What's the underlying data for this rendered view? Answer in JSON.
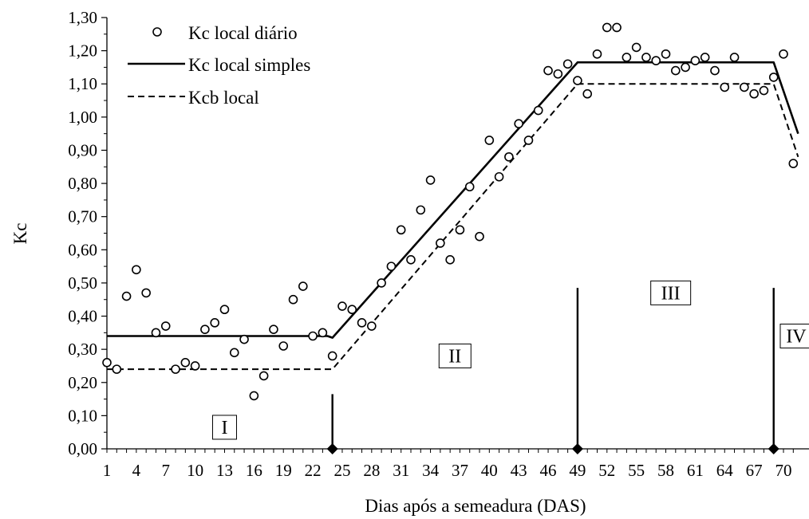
{
  "chart_data": {
    "type": "line",
    "title": "",
    "xlabel": "Dias após a semeadura (DAS)",
    "ylabel": "Kc",
    "xlim": [
      1,
      71
    ],
    "ylim": [
      0,
      1.3
    ],
    "x_ticks": [
      "1",
      "4",
      "7",
      "10",
      "13",
      "16",
      "19",
      "22",
      "25",
      "28",
      "31",
      "34",
      "37",
      "40",
      "43",
      "46",
      "49",
      "52",
      "55",
      "58",
      "61",
      "64",
      "67",
      "70"
    ],
    "y_ticks": [
      "0,00",
      "0,10",
      "0,20",
      "0,30",
      "0,40",
      "0,50",
      "0,60",
      "0,70",
      "0,80",
      "0,90",
      "1,00",
      "1,10",
      "1,20",
      "1,30"
    ],
    "grid": false,
    "legend_position": "top-left",
    "series": [
      {
        "name": "Kc local diário",
        "style": "markers-open-circle",
        "points": [
          [
            1,
            0.26
          ],
          [
            2,
            0.24
          ],
          [
            3,
            0.46
          ],
          [
            4,
            0.54
          ],
          [
            5,
            0.47
          ],
          [
            6,
            0.35
          ],
          [
            7,
            0.37
          ],
          [
            8,
            0.24
          ],
          [
            9,
            0.26
          ],
          [
            10,
            0.25
          ],
          [
            11,
            0.36
          ],
          [
            12,
            0.38
          ],
          [
            13,
            0.42
          ],
          [
            14,
            0.29
          ],
          [
            15,
            0.33
          ],
          [
            16,
            0.16
          ],
          [
            17,
            0.22
          ],
          [
            18,
            0.36
          ],
          [
            19,
            0.31
          ],
          [
            20,
            0.45
          ],
          [
            21,
            0.49
          ],
          [
            22,
            0.34
          ],
          [
            23,
            0.35
          ],
          [
            24,
            0.28
          ],
          [
            25,
            0.43
          ],
          [
            26,
            0.42
          ],
          [
            27,
            0.38
          ],
          [
            28,
            0.37
          ],
          [
            29,
            0.5
          ],
          [
            30,
            0.55
          ],
          [
            31,
            0.66
          ],
          [
            32,
            0.57
          ],
          [
            33,
            0.72
          ],
          [
            34,
            0.81
          ],
          [
            35,
            0.62
          ],
          [
            36,
            0.57
          ],
          [
            37,
            0.66
          ],
          [
            38,
            0.79
          ],
          [
            39,
            0.64
          ],
          [
            40,
            0.93
          ],
          [
            41,
            0.82
          ],
          [
            42,
            0.88
          ],
          [
            43,
            0.98
          ],
          [
            44,
            0.93
          ],
          [
            45,
            1.02
          ],
          [
            46,
            1.14
          ],
          [
            47,
            1.13
          ],
          [
            48,
            1.16
          ],
          [
            49,
            1.11
          ],
          [
            50,
            1.07
          ],
          [
            51,
            1.19
          ],
          [
            52,
            1.27
          ],
          [
            53,
            1.27
          ],
          [
            54,
            1.18
          ],
          [
            55,
            1.21
          ],
          [
            56,
            1.18
          ],
          [
            57,
            1.17
          ],
          [
            58,
            1.19
          ],
          [
            59,
            1.14
          ],
          [
            60,
            1.15
          ],
          [
            61,
            1.17
          ],
          [
            62,
            1.18
          ],
          [
            63,
            1.14
          ],
          [
            64,
            1.09
          ],
          [
            65,
            1.18
          ],
          [
            66,
            1.09
          ],
          [
            67,
            1.07
          ],
          [
            68,
            1.08
          ],
          [
            69,
            1.12
          ],
          [
            70,
            1.19
          ],
          [
            71,
            0.86
          ]
        ]
      },
      {
        "name": "Kc local simples",
        "style": "solid",
        "points": [
          [
            1,
            0.34
          ],
          [
            23.5,
            0.34
          ],
          [
            24,
            0.335
          ],
          [
            49,
            1.165
          ],
          [
            69,
            1.165
          ],
          [
            71.5,
            0.95
          ]
        ]
      },
      {
        "name": "Kcb local",
        "style": "dashed",
        "points": [
          [
            1,
            0.24
          ],
          [
            24,
            0.24
          ],
          [
            49,
            1.1
          ],
          [
            69,
            1.1
          ],
          [
            71.5,
            0.88
          ]
        ]
      }
    ],
    "stage_markers": [
      {
        "x": 24,
        "y_top": 0.165
      },
      {
        "x": 49,
        "y_top": 0.485
      },
      {
        "x": 69,
        "y_top": 0.485
      }
    ],
    "stage_labels": [
      {
        "label": "I",
        "x": 13,
        "y": 0.065
      },
      {
        "label": "II",
        "x": 36.5,
        "y": 0.28
      },
      {
        "label": "III",
        "x": 58.5,
        "y": 0.47
      },
      {
        "label": "IV",
        "x": 71.3,
        "y": 0.34
      }
    ]
  }
}
